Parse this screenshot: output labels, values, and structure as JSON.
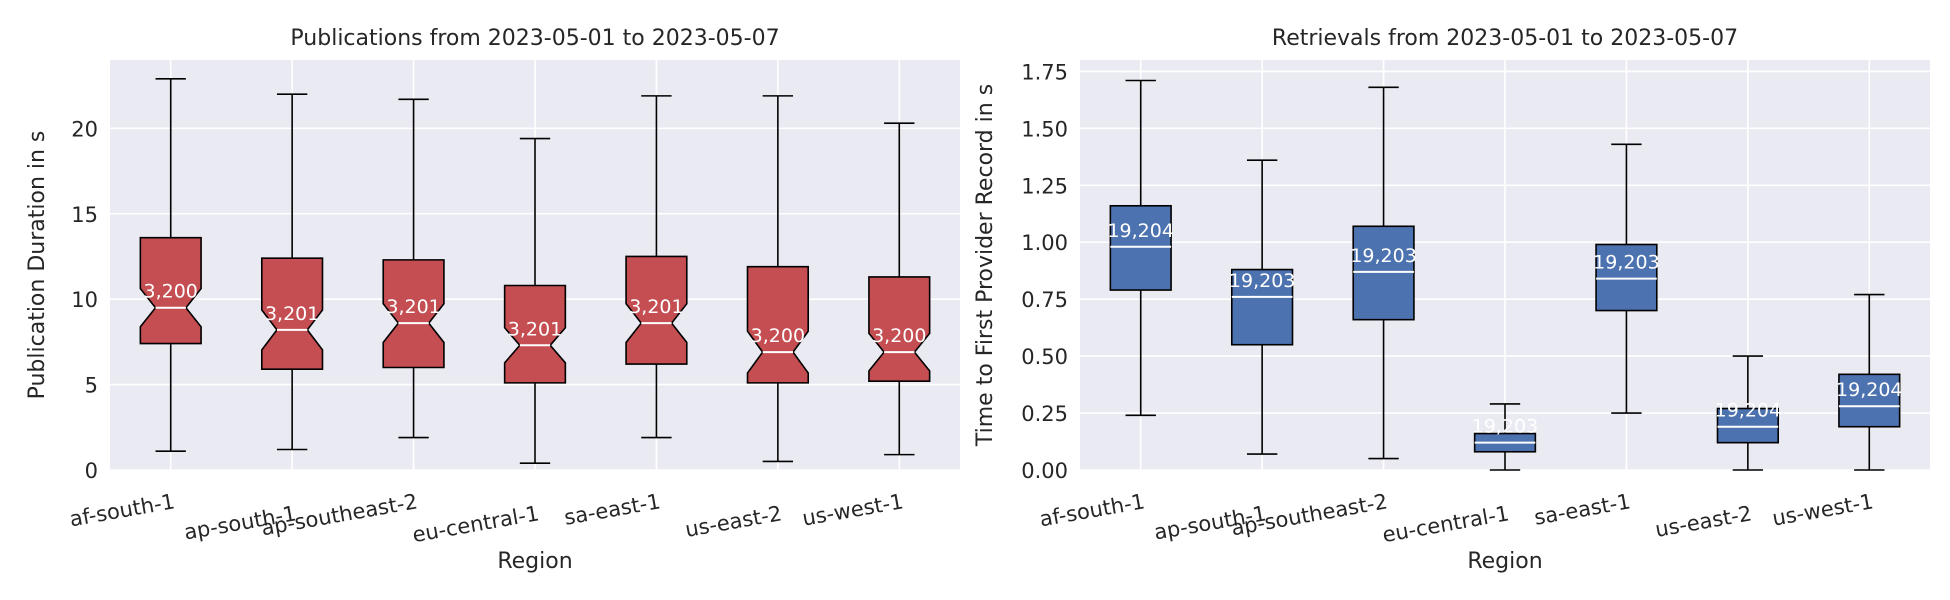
{
  "chart_data": [
    {
      "type": "box",
      "title": "Publications from 2023-05-01 to 2023-05-07",
      "xlabel": "Region",
      "ylabel": "Publication Duration in s",
      "ylim": [
        0,
        24
      ],
      "yticks": [
        0,
        5,
        10,
        15,
        20
      ],
      "notched": true,
      "box_color": "#c44e52",
      "categories": [
        "af-south-1",
        "ap-south-1",
        "ap-southeast-2",
        "eu-central-1",
        "sa-east-1",
        "us-east-2",
        "us-west-1"
      ],
      "boxes": [
        {
          "whislo": 1.1,
          "q1": 7.4,
          "med": 9.5,
          "q3": 13.6,
          "whishi": 22.9,
          "count_label": "3,200"
        },
        {
          "whislo": 1.2,
          "q1": 5.9,
          "med": 8.2,
          "q3": 12.4,
          "whishi": 22.0,
          "count_label": "3,201"
        },
        {
          "whislo": 1.9,
          "q1": 6.0,
          "med": 8.6,
          "q3": 12.3,
          "whishi": 21.7,
          "count_label": "3,201"
        },
        {
          "whislo": 0.4,
          "q1": 5.1,
          "med": 7.3,
          "q3": 10.8,
          "whishi": 19.4,
          "count_label": "3,201"
        },
        {
          "whislo": 1.9,
          "q1": 6.2,
          "med": 8.6,
          "q3": 12.5,
          "whishi": 21.9,
          "count_label": "3,201"
        },
        {
          "whislo": 0.5,
          "q1": 5.1,
          "med": 6.9,
          "q3": 11.9,
          "whishi": 21.9,
          "count_label": "3,200"
        },
        {
          "whislo": 0.9,
          "q1": 5.2,
          "med": 6.9,
          "q3": 11.3,
          "whishi": 20.3,
          "count_label": "3,200"
        }
      ]
    },
    {
      "type": "box",
      "title": "Retrievals from 2023-05-01 to 2023-05-07",
      "xlabel": "Region",
      "ylabel": "Time to First Provider Record in s",
      "ylim": [
        0,
        1.8
      ],
      "yticks": [
        0.0,
        0.25,
        0.5,
        0.75,
        1.0,
        1.25,
        1.5,
        1.75
      ],
      "ytick_labels": [
        "0.00",
        "0.25",
        "0.50",
        "0.75",
        "1.00",
        "1.25",
        "1.50",
        "1.75"
      ],
      "notched": false,
      "box_color": "#4c72b0",
      "categories": [
        "af-south-1",
        "ap-south-1",
        "ap-southeast-2",
        "eu-central-1",
        "sa-east-1",
        "us-east-2",
        "us-west-1"
      ],
      "boxes": [
        {
          "whislo": 0.24,
          "q1": 0.79,
          "med": 0.98,
          "q3": 1.16,
          "whishi": 1.71,
          "count_label": "19,204"
        },
        {
          "whislo": 0.07,
          "q1": 0.55,
          "med": 0.76,
          "q3": 0.88,
          "whishi": 1.36,
          "count_label": "19,203"
        },
        {
          "whislo": 0.05,
          "q1": 0.66,
          "med": 0.87,
          "q3": 1.07,
          "whishi": 1.68,
          "count_label": "19,203"
        },
        {
          "whislo": 0.0,
          "q1": 0.08,
          "med": 0.12,
          "q3": 0.16,
          "whishi": 0.29,
          "count_label": "19,203"
        },
        {
          "whislo": 0.25,
          "q1": 0.7,
          "med": 0.84,
          "q3": 0.99,
          "whishi": 1.43,
          "count_label": "19,203"
        },
        {
          "whislo": 0.0,
          "q1": 0.12,
          "med": 0.19,
          "q3": 0.27,
          "whishi": 0.5,
          "count_label": "19,204"
        },
        {
          "whislo": 0.0,
          "q1": 0.19,
          "med": 0.28,
          "q3": 0.42,
          "whishi": 0.77,
          "count_label": "19,204"
        }
      ]
    }
  ]
}
